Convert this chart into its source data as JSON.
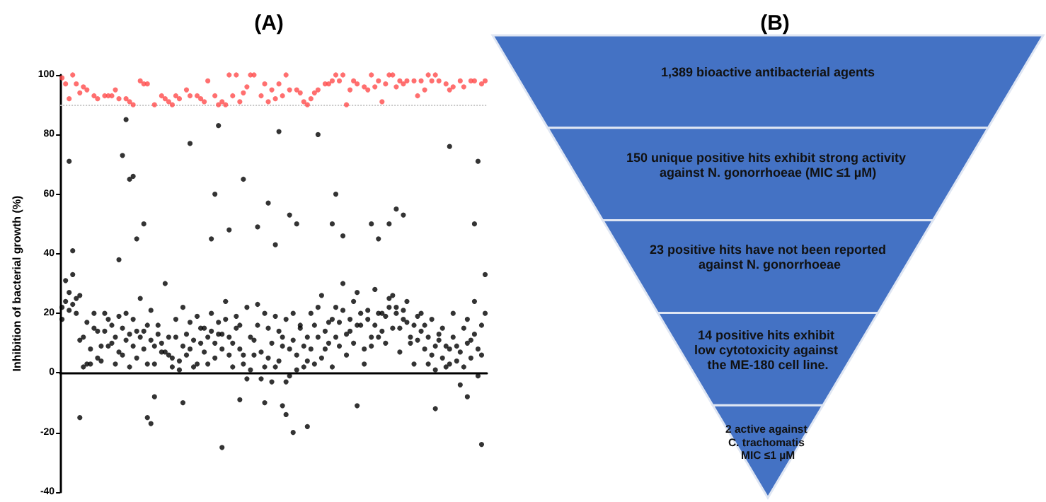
{
  "chart_data": [
    {
      "type": "scatter",
      "title": "(A)",
      "ylabel": "Inhibition of bacterial growth (%)",
      "categories": [
        null,
        null,
        null,
        null,
        null,
        null,
        null,
        null,
        null,
        null,
        null,
        null,
        null,
        null,
        null,
        null,
        null,
        null,
        null,
        null,
        null,
        null,
        null,
        null,
        null,
        null,
        null,
        null,
        null,
        null,
        null,
        null,
        null,
        null,
        null,
        null,
        null,
        null,
        null,
        null,
        null,
        null,
        null,
        null,
        null,
        null,
        null,
        null,
        null,
        null,
        null,
        null,
        null,
        null,
        null,
        null,
        null,
        null,
        null,
        null,
        null,
        null,
        null,
        null,
        null,
        null,
        null,
        null,
        null,
        null,
        null,
        null,
        null,
        null,
        null,
        null,
        null,
        null,
        null,
        null,
        null,
        null,
        null,
        null,
        null,
        null,
        null,
        null,
        null,
        null,
        null,
        null,
        null,
        null,
        null,
        null,
        null,
        null,
        null,
        null,
        null,
        null,
        null,
        null,
        null,
        null,
        null,
        null,
        null,
        null,
        null,
        null,
        null,
        null,
        null,
        null,
        null,
        null,
        null,
        null
      ],
      "series": [
        {
          "color": "#ff4b4b",
          "values": [
            99,
            97,
            92,
            100,
            97,
            94,
            96,
            95,
            null,
            93,
            92,
            null,
            93,
            93,
            93,
            95,
            92,
            null,
            92,
            91,
            90,
            null,
            98,
            97,
            97,
            null,
            90,
            null,
            93,
            92,
            91,
            90,
            93,
            92,
            null,
            95,
            93,
            null,
            93,
            92,
            91,
            98,
            null,
            93,
            90,
            91,
            90,
            100,
            93,
            100,
            91,
            94,
            96,
            100,
            100,
            null,
            93,
            97,
            91,
            95,
            92,
            97,
            93,
            100,
            95,
            null,
            95,
            94,
            91,
            90,
            92,
            94,
            95,
            null,
            97,
            97,
            98,
            100,
            98,
            100,
            90,
            95,
            98,
            97,
            null,
            96,
            95,
            100,
            96,
            98,
            91,
            97,
            100,
            100,
            96,
            98,
            97,
            98,
            null,
            98,
            93,
            98,
            95,
            100,
            98,
            100,
            98,
            null,
            97,
            95,
            96,
            null,
            98,
            96,
            null,
            98,
            98,
            null,
            97,
            98
          ]
        },
        {
          "color": "#000000",
          "values": [
            22,
            24,
            21,
            23,
            25,
            26,
            12,
            3,
            8,
            15,
            5,
            9,
            14,
            18,
            10,
            12,
            7,
            15,
            11,
            13,
            9,
            14,
            12,
            8,
            16,
            11,
            3,
            13,
            10,
            7,
            6,
            2,
            12,
            4,
            9,
            13,
            8,
            11,
            3,
            15,
            7,
            12,
            14,
            10,
            17,
            13,
            18,
            6,
            10,
            15,
            8,
            3,
            -2,
            12,
            6,
            16,
            -2,
            20,
            5,
            10,
            2,
            14,
            9,
            18,
            -1,
            11,
            6,
            15,
            2,
            12,
            8,
            16,
            22,
            5,
            14,
            10,
            18,
            12,
            17,
            21,
            13,
            18,
            24,
            16,
            20,
            8,
            18,
            12,
            16,
            20,
            14,
            19,
            22,
            26,
            20,
            15,
            18,
            24,
            10,
            16,
            19,
            14,
            8,
            12,
            6,
            9,
            13,
            5,
            2,
            8,
            12,
            4,
            7,
            15,
            10,
            5,
            13,
            8,
            16,
            20
          ]
        },
        {
          "color": "#000000",
          "values": [
            18,
            31,
            27,
            33,
            20,
            11,
            2,
            17,
            3,
            20,
            14,
            4,
            20,
            9,
            16,
            3,
            19,
            6,
            20,
            2,
            18,
            5,
            25,
            14,
            3,
            21,
            9,
            16,
            7,
            30,
            12,
            5,
            18,
            1,
            22,
            6,
            17,
            2,
            19,
            10,
            15,
            3,
            20,
            5,
            13,
            8,
            24,
            12,
            2,
            19,
            16,
            6,
            22,
            1,
            11,
            23,
            7,
            2,
            15,
            -3,
            19,
            4,
            12,
            -3,
            8,
            20,
            1,
            16,
            9,
            4,
            20,
            3,
            12,
            26,
            8,
            17,
            2,
            22,
            9,
            30,
            6,
            14,
            10,
            27,
            16,
            3,
            21,
            9,
            28,
            12,
            20,
            10,
            25,
            15,
            22,
            7,
            21,
            17,
            12,
            3,
            11,
            20,
            16,
            3,
            18,
            1,
            11,
            15,
            9,
            3,
            20,
            9,
            -4,
            2,
            18,
            11,
            24,
            -1,
            6,
            33
          ]
        },
        {
          "color": "#000000",
          "values": [
            null,
            null,
            71,
            41,
            null,
            -15,
            null,
            null,
            null,
            null,
            null,
            null,
            null,
            null,
            null,
            null,
            38,
            73,
            85,
            65,
            66,
            45,
            null,
            50,
            -15,
            -17,
            -8,
            null,
            null,
            null,
            null,
            null,
            null,
            null,
            -10,
            null,
            77,
            null,
            null,
            null,
            null,
            null,
            45,
            60,
            83,
            -25,
            null,
            48,
            null,
            null,
            -9,
            65,
            null,
            null,
            null,
            49,
            null,
            -10,
            57,
            null,
            43,
            81,
            -11,
            -14,
            53,
            -20,
            50,
            null,
            null,
            -18,
            null,
            null,
            80,
            null,
            null,
            null,
            50,
            60,
            null,
            46,
            null,
            null,
            null,
            -11,
            null,
            null,
            null,
            50,
            null,
            45,
            null,
            null,
            50,
            null,
            55,
            null,
            53,
            null,
            null,
            null,
            null,
            null,
            null,
            null,
            null,
            -12,
            null,
            null,
            null,
            76,
            null,
            null,
            null,
            null,
            -8,
            null,
            50,
            71,
            -24,
            null
          ]
        }
      ],
      "ylim": [
        -40,
        100
      ],
      "yticks": [
        -40,
        -20,
        0,
        20,
        40,
        60,
        80,
        100
      ],
      "tick_labels": "y",
      "marker": "circle",
      "ref_lines": [
        {
          "axis": "y",
          "value": 90,
          "label": null,
          "color": "#c8c8c8",
          "line_style": "dotted"
        }
      ]
    },
    {
      "type": "other",
      "title": "(B)",
      "color": "#4472c4",
      "categories": [
        "1,389 bioactive antibacterial agents",
        "150 unique positive hits exhibit strong activity against N. gonorrhoeae (MIC ≤1 µM)",
        "23 positive hits have not been reported against N. gonorrhoeae",
        "14 positive hits exhibit low cytotoxicity against the ME-180 cell line.",
        "2 active against C. trachomatis MIC ≤1 µM"
      ]
    }
  ]
}
